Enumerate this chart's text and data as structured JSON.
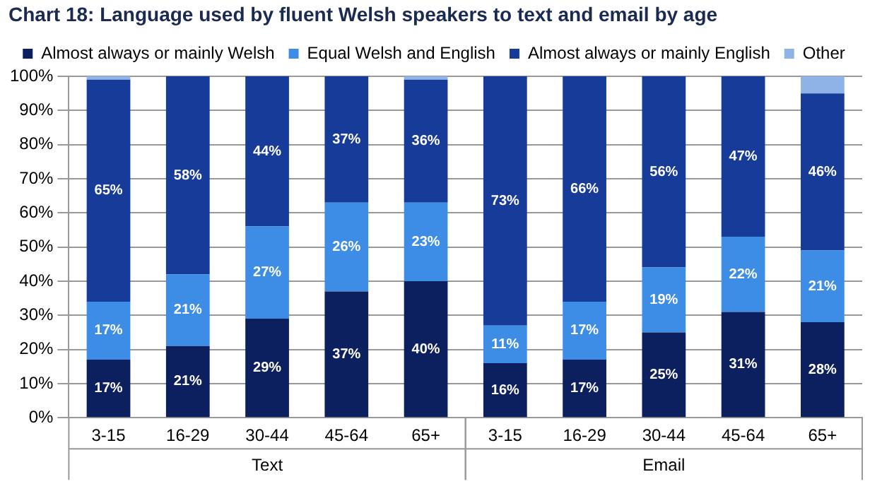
{
  "chart_data": {
    "type": "bar",
    "title": "Chart 18: Language used by fluent Welsh speakers to text and email by age",
    "categories": [
      "3-15",
      "16-29",
      "30-44",
      "45-64",
      "65+",
      "3-15",
      "16-29",
      "30-44",
      "45-64",
      "65+"
    ],
    "stacked": true,
    "series": [
      {
        "name": "Almost always or mainly Welsh",
        "color": "#0c1f5e",
        "values": [
          17,
          21,
          29,
          37,
          40,
          16,
          17,
          25,
          31,
          28
        ],
        "value_labels": [
          "17%",
          "21%",
          "29%",
          "37%",
          "40%",
          "16%",
          "17%",
          "25%",
          "31%",
          "28%"
        ]
      },
      {
        "name": "Equal Welsh and English",
        "color": "#3d8de6",
        "values": [
          17,
          21,
          27,
          26,
          23,
          11,
          17,
          19,
          22,
          21
        ],
        "value_labels": [
          "17%",
          "21%",
          "27%",
          "26%",
          "23%",
          "11%",
          "17%",
          "19%",
          "22%",
          "21%"
        ]
      },
      {
        "name": "Almost always or mainly English",
        "color": "#173b98",
        "values": [
          65,
          58,
          44,
          37,
          36,
          73,
          66,
          56,
          47,
          46
        ],
        "value_labels": [
          "65%",
          "58%",
          "44%",
          "37%",
          "36%",
          "73%",
          "66%",
          "56%",
          "47%",
          "46%"
        ]
      },
      {
        "name": "Other",
        "color": "#8fb3e6",
        "values": [
          1,
          0,
          0,
          0,
          1,
          0,
          0,
          0,
          0,
          5
        ]
      }
    ],
    "ylim": [
      0,
      100
    ],
    "yticks": [
      {
        "value": 0,
        "label": "0%"
      },
      {
        "value": 10,
        "label": "10%"
      },
      {
        "value": 20,
        "label": "20%"
      },
      {
        "value": 30,
        "label": "30%"
      },
      {
        "value": 40,
        "label": "40%"
      },
      {
        "value": 50,
        "label": "50%"
      },
      {
        "value": 60,
        "label": "60%"
      },
      {
        "value": 70,
        "label": "70%"
      },
      {
        "value": 80,
        "label": "80%"
      },
      {
        "value": 90,
        "label": "90%"
      },
      {
        "value": 100,
        "label": "100%"
      }
    ],
    "grid": "y",
    "legend": "top",
    "annotations": [
      "Text",
      "Email"
    ]
  }
}
